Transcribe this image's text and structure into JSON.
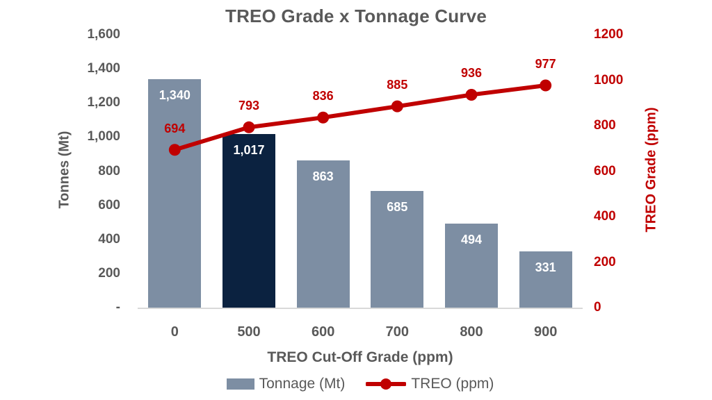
{
  "title": "TREO Grade x Tonnage Curve",
  "colors": {
    "bar": "#7D8EA3",
    "bar_highlight": "#0B2240",
    "line": "#C00000",
    "text": "#595959",
    "axis_line": "#D9D9D9",
    "bar_label": "#FFFFFF"
  },
  "chart_data": {
    "type": "combo-bar-line",
    "title": "TREO Grade x Tonnage Curve",
    "categories": [
      "0",
      "500",
      "600",
      "700",
      "800",
      "900"
    ],
    "series": [
      {
        "name": "Tonnage (Mt)",
        "type": "bar",
        "axis": "left",
        "values": [
          1340,
          1017,
          863,
          685,
          494,
          331
        ],
        "labels": [
          "1,340",
          "1,017",
          "863",
          "685",
          "494",
          "331"
        ],
        "highlight_index": 1
      },
      {
        "name": "TREO (ppm)",
        "type": "line",
        "axis": "right",
        "values": [
          694,
          793,
          836,
          885,
          936,
          977
        ],
        "labels": [
          "694",
          "793",
          "836",
          "885",
          "936",
          "977"
        ]
      }
    ],
    "left_axis": {
      "title": "Tonnes (Mt)",
      "min": 0,
      "max": 1600,
      "step": 200,
      "tick_labels": [
        "-",
        "200",
        "400",
        "600",
        "800",
        "1,000",
        "1,200",
        "1,400",
        "1,600"
      ]
    },
    "right_axis": {
      "title": "TREO Grade (ppm)",
      "min": 0,
      "max": 1200,
      "step": 200,
      "tick_labels": [
        "0",
        "200",
        "400",
        "600",
        "800",
        "1000",
        "1200"
      ]
    },
    "x_axis": {
      "title": "TREO Cut-Off Grade (ppm)"
    },
    "legend": [
      {
        "label": "Tonnage (Mt)",
        "marker": "bar"
      },
      {
        "label": "TREO (ppm)",
        "marker": "line"
      }
    ],
    "grid": false,
    "legend_position": "bottom"
  }
}
